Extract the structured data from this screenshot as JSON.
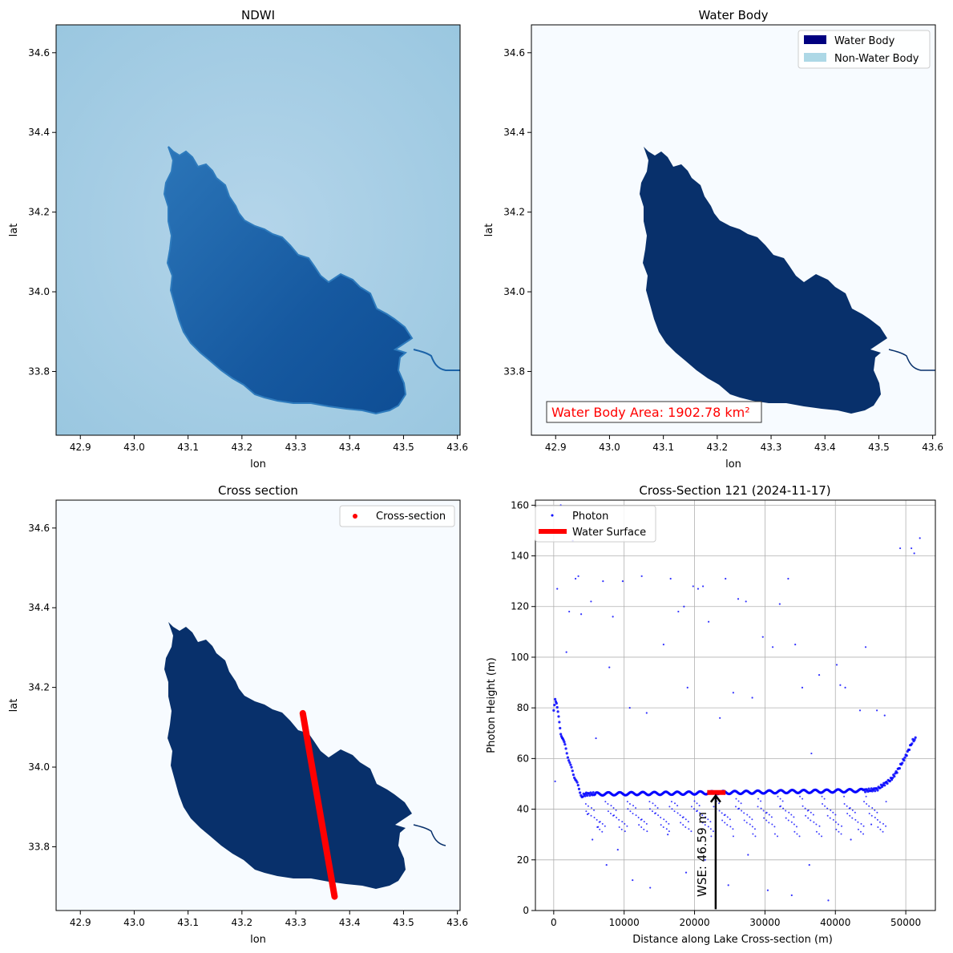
{
  "colors": {
    "water": "#08306b",
    "water_legend": "#000080",
    "nonwater_legend": "#add8e6",
    "ndwi_water": "#1a5fa8",
    "ndwi_land": "#9ecae1",
    "background_light": "#f7fbff",
    "cross_section": "#ff0000",
    "photon": "#0000ff",
    "wse_bar": "#ff0000"
  },
  "chart_data": [
    {
      "type": "heatmap",
      "title": "NDWI",
      "xlabel": "lon",
      "ylabel": "lat",
      "xlim": [
        42.855,
        43.605
      ],
      "ylim": [
        33.64,
        34.67
      ],
      "xticks": [
        "42.9",
        "43.0",
        "43.1",
        "43.2",
        "43.3",
        "43.4",
        "43.5",
        "43.6"
      ],
      "yticks": [
        "33.8",
        "34.0",
        "34.2",
        "34.4",
        "34.6"
      ],
      "colormap": "Blues"
    },
    {
      "type": "heatmap",
      "title": "Water Body",
      "xlabel": "lon",
      "ylabel": "lat",
      "xlim": [
        42.855,
        43.605
      ],
      "ylim": [
        33.64,
        34.67
      ],
      "xticks": [
        "42.9",
        "43.0",
        "43.1",
        "43.2",
        "43.3",
        "43.4",
        "43.5",
        "43.6"
      ],
      "yticks": [
        "33.8",
        "34.0",
        "34.2",
        "34.4",
        "34.6"
      ],
      "legend": [
        "Water Body",
        "Non-Water Body"
      ],
      "legend_position": "top-right",
      "annotation": "Water Body Area: 1902.78 km²"
    },
    {
      "type": "scatter",
      "title": "Cross section",
      "xlabel": "lon",
      "ylabel": "lat",
      "xlim": [
        42.855,
        43.605
      ],
      "ylim": [
        33.64,
        34.67
      ],
      "xticks": [
        "42.9",
        "43.0",
        "43.1",
        "43.2",
        "43.3",
        "43.4",
        "43.5",
        "43.6"
      ],
      "yticks": [
        "33.8",
        "34.0",
        "34.2",
        "34.4",
        "34.6"
      ],
      "legend": [
        "Cross-section"
      ],
      "legend_position": "top-right",
      "series": [
        {
          "name": "Cross-section",
          "start": [
            43.313,
            34.135
          ],
          "end": [
            43.372,
            33.675
          ]
        }
      ]
    },
    {
      "type": "scatter",
      "title": "Cross-Section 121 (2024-11-17)",
      "xlabel": "Distance along Lake Cross-section (m)",
      "ylabel": "Photon Height (m)",
      "xlim": [
        -2600,
        54200
      ],
      "ylim": [
        0,
        162
      ],
      "xticks": [
        "0",
        "10000",
        "20000",
        "30000",
        "40000",
        "50000"
      ],
      "yticks": [
        "0",
        "20",
        "40",
        "60",
        "80",
        "100",
        "120",
        "140",
        "160"
      ],
      "grid": true,
      "legend": [
        "Photon",
        "Water Surface"
      ],
      "legend_position": "top-left",
      "wse_label": "WSE: 46.59 m",
      "series": [
        {
          "name": "Photon",
          "x": [
            0,
            200,
            400,
            600,
            800,
            1000,
            1300,
            1600,
            2000,
            2400,
            2800,
            3200,
            3600,
            4000,
            4500,
            5000,
            6000,
            8000,
            10000,
            12000,
            14000,
            16000,
            18000,
            20000,
            22000,
            24000,
            26000,
            28000,
            30000,
            32000,
            34000,
            36000,
            38000,
            40000,
            42000,
            44000,
            45000,
            46000,
            47000,
            47500,
            48000,
            49000,
            50000,
            50500,
            51000,
            51500
          ],
          "y": [
            79,
            84,
            82,
            78,
            74,
            70,
            68,
            65,
            61,
            57,
            54,
            51,
            48,
            45,
            46,
            46,
            46,
            46.1,
            46.1,
            46.2,
            46.2,
            46.3,
            46.3,
            46.4,
            46.5,
            46.6,
            46.6,
            46.7,
            46.8,
            46.9,
            47,
            47,
            47.1,
            47.2,
            47.3,
            47.4,
            47.5,
            48,
            50,
            51,
            52,
            56,
            61,
            64,
            67,
            68
          ]
        },
        {
          "name": "Photon (scattered)",
          "x": [
            200,
            500,
            1000,
            1800,
            2200,
            2700,
            3100,
            3500,
            3900,
            5300,
            6000,
            7000,
            7900,
            8400,
            9800,
            10800,
            12500,
            13200,
            15600,
            16600,
            17700,
            18500,
            19000,
            19800,
            20500,
            21200,
            22000,
            23600,
            24400,
            25500,
            26200,
            27300,
            28200,
            29700,
            31100,
            32100,
            33300,
            34300,
            35300,
            36600,
            37700,
            40200,
            40700,
            41400,
            43500,
            44300,
            45900,
            47000,
            49200,
            50800,
            51200,
            52000,
            4800,
            5500,
            6300,
            7500,
            9100,
            11200,
            13700,
            16200,
            18800,
            21500,
            24800,
            27600,
            30400,
            33800,
            36300,
            39000,
            42200,
            45100
          ],
          "y": [
            51,
            127,
            160,
            102,
            118,
            146,
            131,
            132,
            117,
            122,
            68,
            130,
            96,
            116,
            130,
            80,
            132,
            78,
            105,
            131,
            118,
            120,
            88,
            128,
            127,
            128,
            114,
            76,
            131,
            86,
            123,
            122,
            84,
            108,
            104,
            121,
            131,
            105,
            88,
            62,
            93,
            97,
            89,
            88,
            79,
            104,
            79,
            77,
            143,
            143,
            141,
            147,
            38,
            28,
            33,
            18,
            24,
            12,
            9,
            30,
            15,
            20,
            10,
            22,
            8,
            6,
            18,
            4,
            28,
            34
          ]
        },
        {
          "name": "Water Surface",
          "x": [
            21800,
            24400
          ],
          "y": [
            46.59,
            46.59
          ]
        }
      ]
    }
  ]
}
